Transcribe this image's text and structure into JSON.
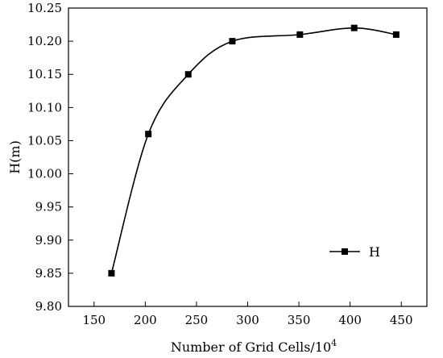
{
  "chart_data": {
    "type": "line",
    "title": "",
    "xlabel": "Number of Grid Cells/10",
    "xlabel_superscript": "4",
    "ylabel": "H(m)",
    "xlim": [
      125,
      475
    ],
    "ylim": [
      9.8,
      10.25
    ],
    "x_ticks": [
      150,
      200,
      250,
      300,
      350,
      400,
      450
    ],
    "y_ticks": [
      9.8,
      9.85,
      9.9,
      9.95,
      10.0,
      10.05,
      10.1,
      10.15,
      10.2,
      10.25
    ],
    "y_tick_labels": [
      "9.80",
      "9.85",
      "9.90",
      "9.95",
      "10.00",
      "10.05",
      "10.10",
      "10.15",
      "10.20",
      "10.25"
    ],
    "grid": false,
    "legend_position": "lower-right",
    "series": [
      {
        "name": "H",
        "marker": "square",
        "smooth": true,
        "color": "#000000",
        "x": [
          167,
          203,
          242,
          285,
          351,
          404,
          445
        ],
        "y": [
          9.85,
          10.06,
          10.15,
          10.2,
          10.21,
          10.22,
          10.21
        ]
      }
    ]
  }
}
